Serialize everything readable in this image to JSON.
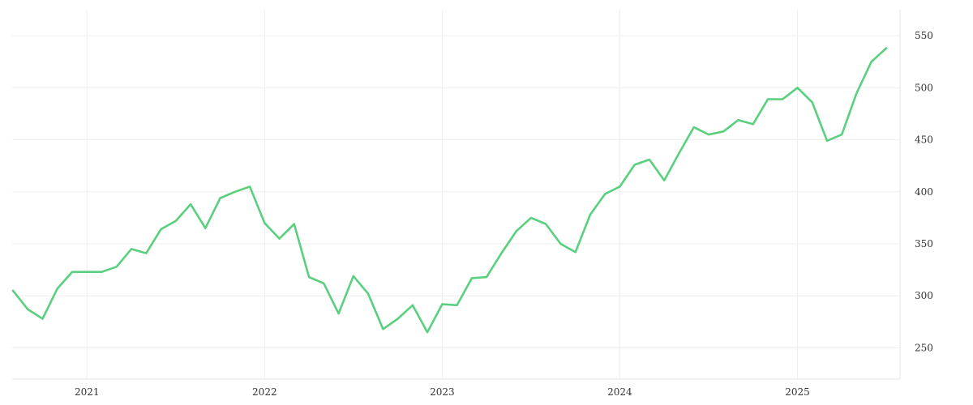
{
  "chart_data": {
    "type": "line",
    "series": [
      {
        "color": "#5ad07f",
        "x": [
          "2020-08",
          "2020-09",
          "2020-10",
          "2020-11",
          "2020-12",
          "2021-01",
          "2021-02",
          "2021-03",
          "2021-04",
          "2021-05",
          "2021-06",
          "2021-07",
          "2021-08",
          "2021-09",
          "2021-10",
          "2021-11",
          "2021-12",
          "2022-01",
          "2022-02",
          "2022-03",
          "2022-04",
          "2022-05",
          "2022-06",
          "2022-07",
          "2022-08",
          "2022-09",
          "2022-10",
          "2022-11",
          "2022-12",
          "2023-01",
          "2023-02",
          "2023-03",
          "2023-04",
          "2023-05",
          "2023-06",
          "2023-07",
          "2023-08",
          "2023-09",
          "2023-10",
          "2023-11",
          "2023-12",
          "2024-01",
          "2024-02",
          "2024-03",
          "2024-04",
          "2024-05",
          "2024-06",
          "2024-07",
          "2024-08",
          "2024-09",
          "2024-10",
          "2024-11",
          "2024-12",
          "2025-01",
          "2025-02",
          "2025-03",
          "2025-04",
          "2025-05",
          "2025-06",
          "2025-07"
        ],
        "values": [
          305,
          287,
          278,
          307,
          323,
          323,
          323,
          328,
          345,
          341,
          364,
          372,
          388,
          365,
          394,
          400,
          405,
          370,
          355,
          369,
          318,
          312,
          283,
          319,
          302,
          268,
          278,
          291,
          265,
          292,
          291,
          317,
          318,
          341,
          362,
          375,
          369,
          350,
          342,
          378,
          398,
          405,
          426,
          431,
          411,
          437,
          462,
          455,
          458,
          469,
          465,
          489,
          489,
          500,
          486,
          449,
          455,
          495,
          525,
          538
        ]
      }
    ],
    "x_ticks": [
      "2021",
      "2022",
      "2023",
      "2024",
      "2025"
    ],
    "y_ticks": [
      250,
      300,
      350,
      400,
      450,
      500,
      550
    ],
    "ylim": [
      220,
      575
    ],
    "y_axis_side": "right",
    "grid": true,
    "legend": "none"
  }
}
